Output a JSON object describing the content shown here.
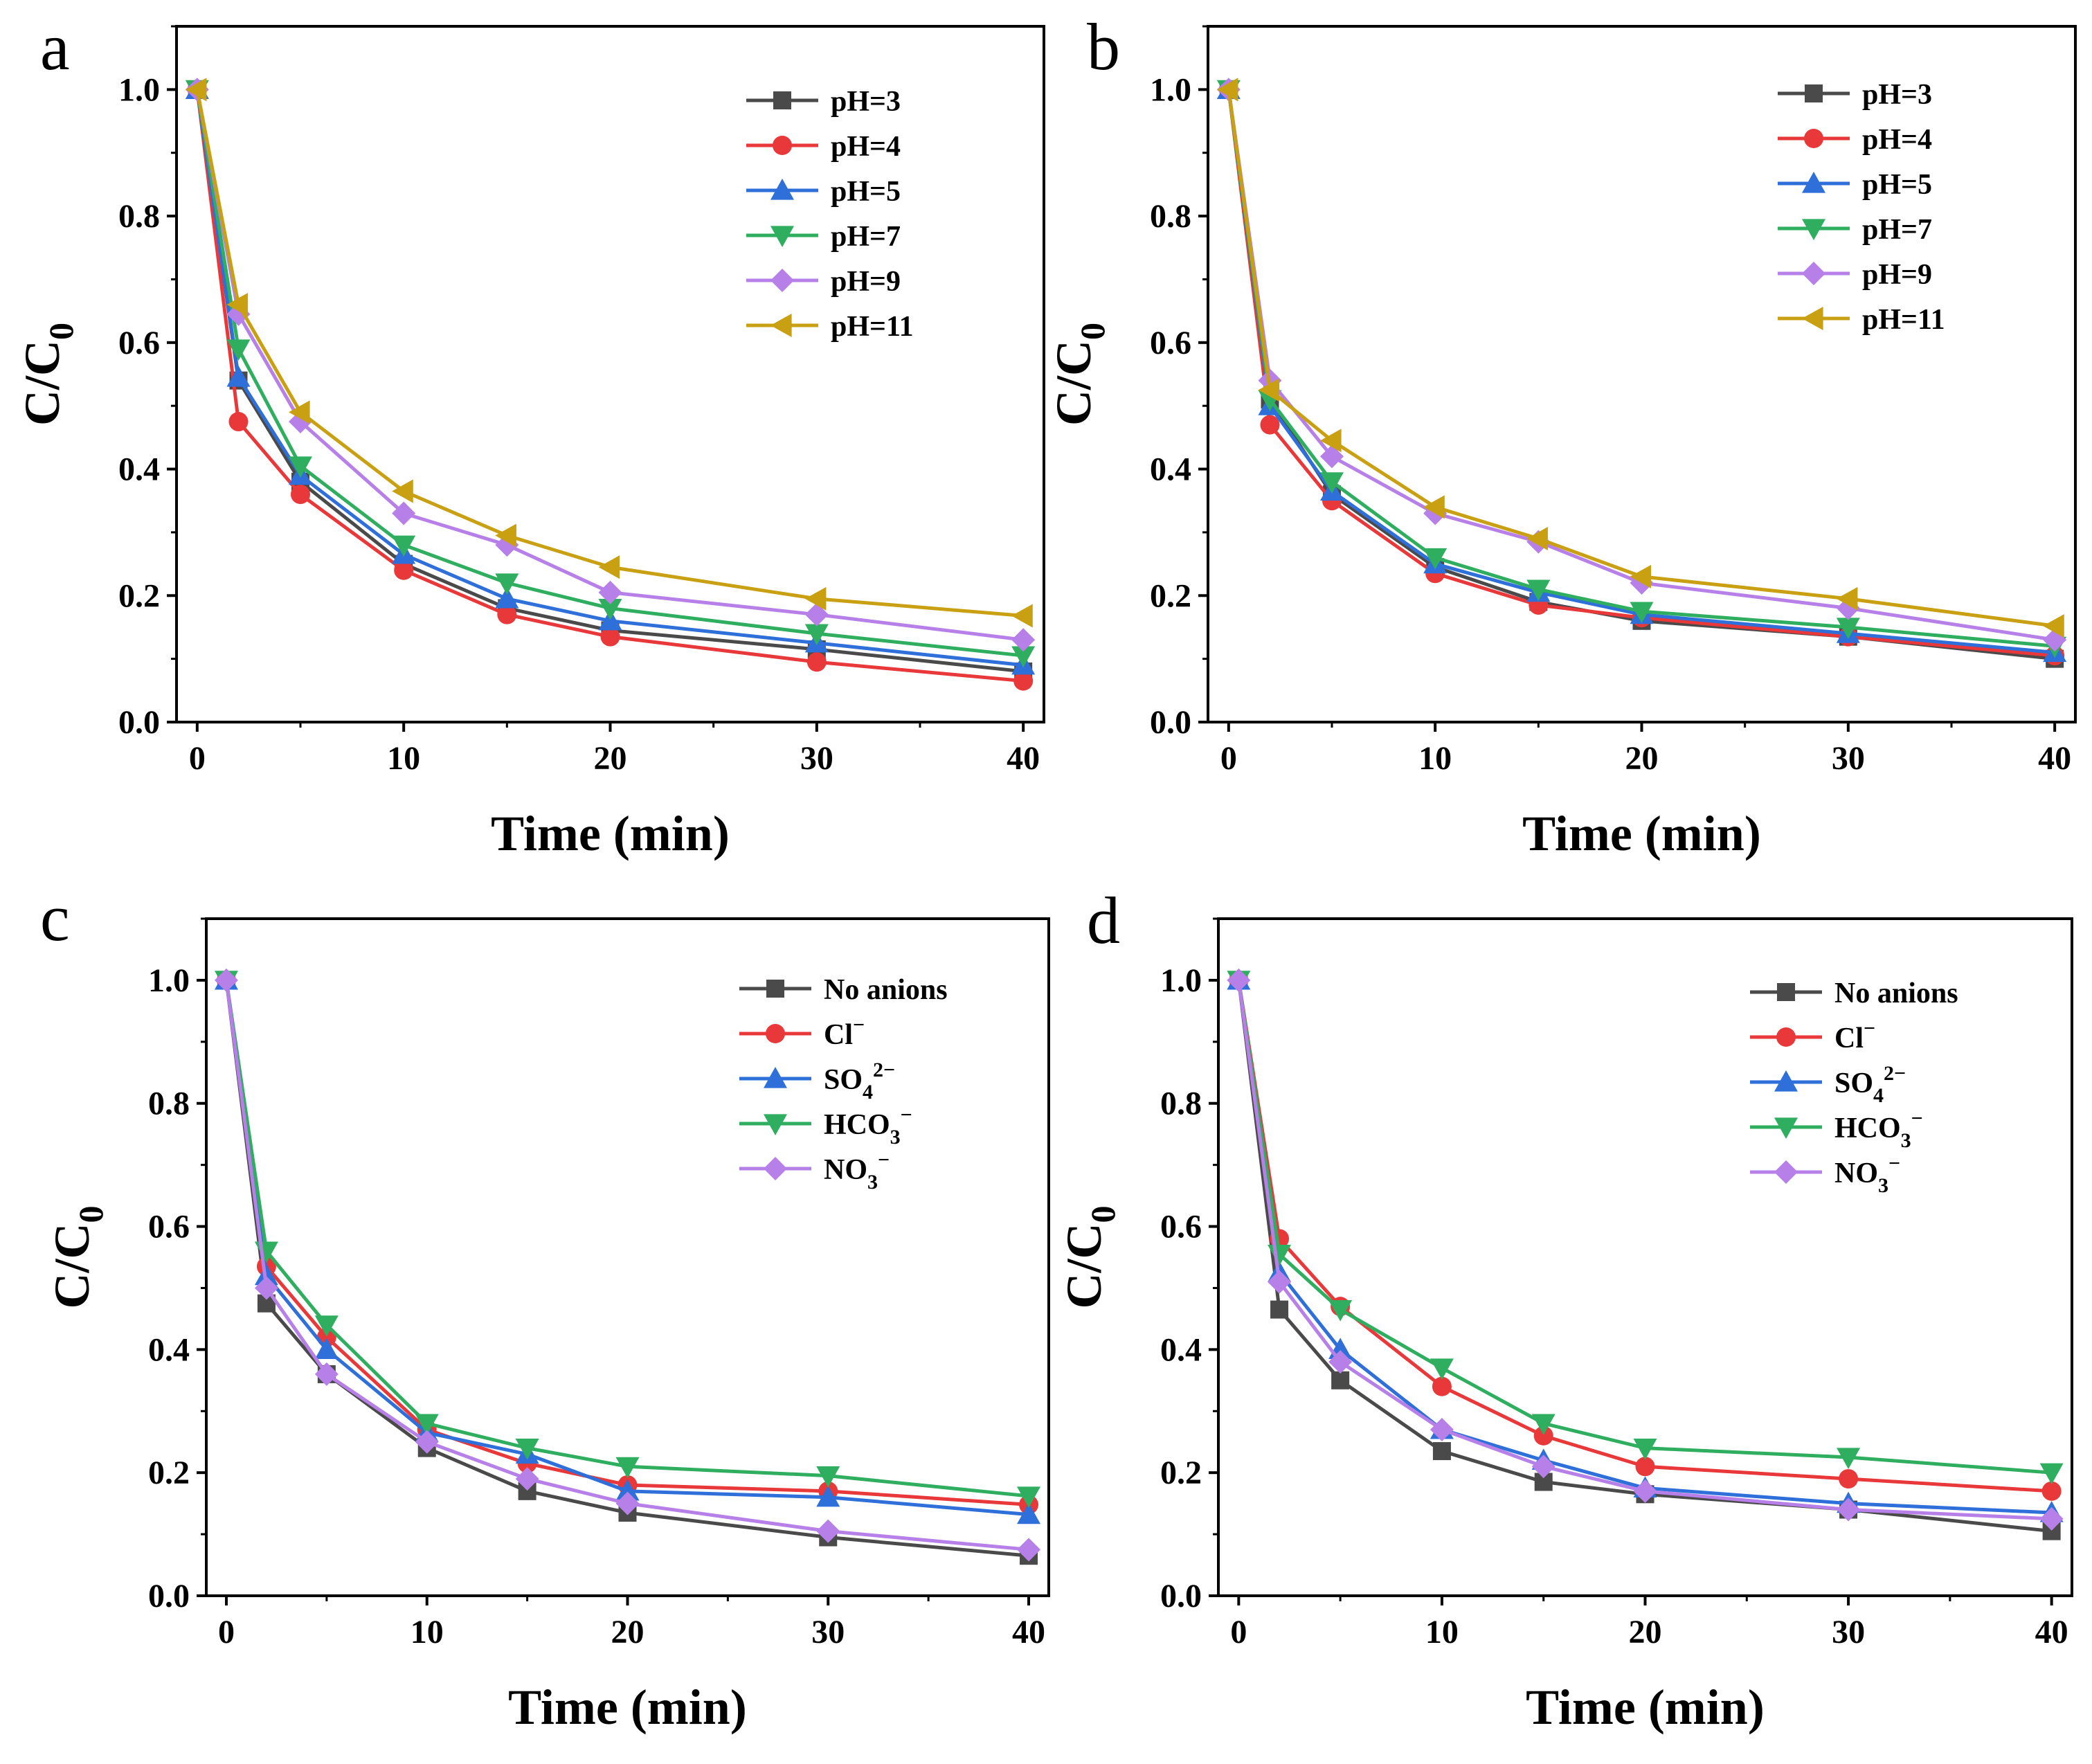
{
  "chart_data": [
    {
      "panel": "a",
      "type": "line",
      "xlabel": "Time (min)",
      "ylabel": "C/C0",
      "xlim": [
        -1,
        41
      ],
      "ylim": [
        0,
        1.1
      ],
      "xticks": [
        "0",
        "10",
        "20",
        "30",
        "40"
      ],
      "yticks": [
        "0.0",
        "0.2",
        "0.4",
        "0.6",
        "0.8",
        "1.0"
      ],
      "legend_position": "top-right",
      "x": [
        0,
        2,
        5,
        10,
        15,
        20,
        30,
        40
      ],
      "series": [
        {
          "name": "pH=3",
          "color": "#4a4a4a",
          "marker": "square",
          "values": [
            1.0,
            0.54,
            0.38,
            0.25,
            0.18,
            0.145,
            0.115,
            0.08
          ]
        },
        {
          "name": "pH=4",
          "color": "#e8383a",
          "marker": "circle",
          "values": [
            1.0,
            0.475,
            0.36,
            0.24,
            0.17,
            0.135,
            0.095,
            0.065
          ]
        },
        {
          "name": "pH=5",
          "color": "#2e6fd9",
          "marker": "triangle-up",
          "values": [
            1.0,
            0.545,
            0.39,
            0.265,
            0.195,
            0.16,
            0.125,
            0.09
          ]
        },
        {
          "name": "pH=7",
          "color": "#2eae5e",
          "marker": "triangle-down",
          "values": [
            1.0,
            0.59,
            0.405,
            0.28,
            0.22,
            0.18,
            0.14,
            0.105
          ]
        },
        {
          "name": "pH=9",
          "color": "#b780e8",
          "marker": "diamond",
          "values": [
            1.0,
            0.645,
            0.475,
            0.33,
            0.28,
            0.205,
            0.17,
            0.13
          ]
        },
        {
          "name": "pH=11",
          "color": "#c9a012",
          "marker": "triangle-left",
          "values": [
            1.0,
            0.66,
            0.49,
            0.365,
            0.295,
            0.245,
            0.195,
            0.168
          ]
        }
      ]
    },
    {
      "panel": "b",
      "type": "line",
      "xlabel": "Time (min)",
      "ylabel": "C/C0",
      "xlim": [
        -1,
        41
      ],
      "ylim": [
        0,
        1.1
      ],
      "xticks": [
        "0",
        "10",
        "20",
        "30",
        "40"
      ],
      "yticks": [
        "0.0",
        "0.2",
        "0.4",
        "0.6",
        "0.8",
        "1.0"
      ],
      "legend_position": "top-right",
      "x": [
        0,
        2,
        5,
        10,
        15,
        20,
        30,
        40
      ],
      "series": [
        {
          "name": "pH=3",
          "color": "#4a4a4a",
          "marker": "square",
          "values": [
            1.0,
            0.51,
            0.36,
            0.245,
            0.19,
            0.16,
            0.135,
            0.1
          ]
        },
        {
          "name": "pH=4",
          "color": "#e8383a",
          "marker": "circle",
          "values": [
            1.0,
            0.47,
            0.35,
            0.235,
            0.185,
            0.165,
            0.135,
            0.105
          ]
        },
        {
          "name": "pH=5",
          "color": "#2e6fd9",
          "marker": "triangle-up",
          "values": [
            1.0,
            0.5,
            0.365,
            0.25,
            0.205,
            0.17,
            0.14,
            0.11
          ]
        },
        {
          "name": "pH=7",
          "color": "#2eae5e",
          "marker": "triangle-down",
          "values": [
            1.0,
            0.51,
            0.38,
            0.26,
            0.21,
            0.175,
            0.15,
            0.12
          ]
        },
        {
          "name": "pH=9",
          "color": "#b780e8",
          "marker": "diamond",
          "values": [
            1.0,
            0.54,
            0.42,
            0.33,
            0.285,
            0.22,
            0.18,
            0.13
          ]
        },
        {
          "name": "pH=11",
          "color": "#c9a012",
          "marker": "triangle-left",
          "values": [
            1.0,
            0.525,
            0.445,
            0.34,
            0.29,
            0.23,
            0.195,
            0.152
          ]
        }
      ]
    },
    {
      "panel": "c",
      "type": "line",
      "xlabel": "Time (min)",
      "ylabel": "C/C0",
      "xlim": [
        -1,
        41
      ],
      "ylim": [
        0,
        1.1
      ],
      "xticks": [
        "0",
        "10",
        "20",
        "30",
        "40"
      ],
      "yticks": [
        "0.0",
        "0.2",
        "0.4",
        "0.6",
        "0.8",
        "1.0"
      ],
      "legend_position": "top-right",
      "x": [
        0,
        2,
        5,
        10,
        15,
        20,
        30,
        40
      ],
      "series": [
        {
          "name": "No anions",
          "color": "#4a4a4a",
          "marker": "square",
          "values": [
            1.0,
            0.475,
            0.36,
            0.24,
            0.17,
            0.135,
            0.095,
            0.065
          ]
        },
        {
          "name": "Cl⁻",
          "color": "#e8383a",
          "marker": "circle",
          "values": [
            1.0,
            0.535,
            0.42,
            0.27,
            0.215,
            0.18,
            0.17,
            0.148
          ]
        },
        {
          "name": "SO₄²⁻",
          "color": "#2e6fd9",
          "marker": "triangle-up",
          "values": [
            1.0,
            0.52,
            0.4,
            0.265,
            0.23,
            0.17,
            0.16,
            0.132
          ]
        },
        {
          "name": "HCO₃⁻",
          "color": "#2eae5e",
          "marker": "triangle-down",
          "values": [
            1.0,
            0.56,
            0.44,
            0.28,
            0.24,
            0.21,
            0.195,
            0.162
          ]
        },
        {
          "name": "NO₃⁻",
          "color": "#b780e8",
          "marker": "diamond",
          "values": [
            1.0,
            0.5,
            0.36,
            0.25,
            0.19,
            0.15,
            0.105,
            0.075
          ]
        }
      ]
    },
    {
      "panel": "d",
      "type": "line",
      "xlabel": "Time (min)",
      "ylabel": "C/C0",
      "xlim": [
        -1,
        41
      ],
      "ylim": [
        0,
        1.1
      ],
      "xticks": [
        "0",
        "10",
        "20",
        "30",
        "40"
      ],
      "yticks": [
        "0.0",
        "0.2",
        "0.4",
        "0.6",
        "0.8",
        "1.0"
      ],
      "legend_position": "top-right",
      "x": [
        0,
        2,
        5,
        10,
        15,
        20,
        30,
        40
      ],
      "series": [
        {
          "name": "No anions",
          "color": "#4a4a4a",
          "marker": "square",
          "values": [
            1.0,
            0.465,
            0.35,
            0.235,
            0.185,
            0.165,
            0.14,
            0.105
          ]
        },
        {
          "name": "Cl⁻",
          "color": "#e8383a",
          "marker": "circle",
          "values": [
            1.0,
            0.58,
            0.47,
            0.34,
            0.26,
            0.21,
            0.19,
            0.17
          ]
        },
        {
          "name": "SO₄²⁻",
          "color": "#2e6fd9",
          "marker": "triangle-up",
          "values": [
            1.0,
            0.525,
            0.4,
            0.27,
            0.22,
            0.175,
            0.15,
            0.135
          ]
        },
        {
          "name": "HCO₃⁻",
          "color": "#2eae5e",
          "marker": "triangle-down",
          "values": [
            1.0,
            0.555,
            0.465,
            0.37,
            0.28,
            0.24,
            0.225,
            0.2
          ]
        },
        {
          "name": "NO₃⁻",
          "color": "#b780e8",
          "marker": "diamond",
          "values": [
            1.0,
            0.51,
            0.38,
            0.27,
            0.21,
            0.17,
            0.14,
            0.125
          ]
        }
      ]
    }
  ]
}
